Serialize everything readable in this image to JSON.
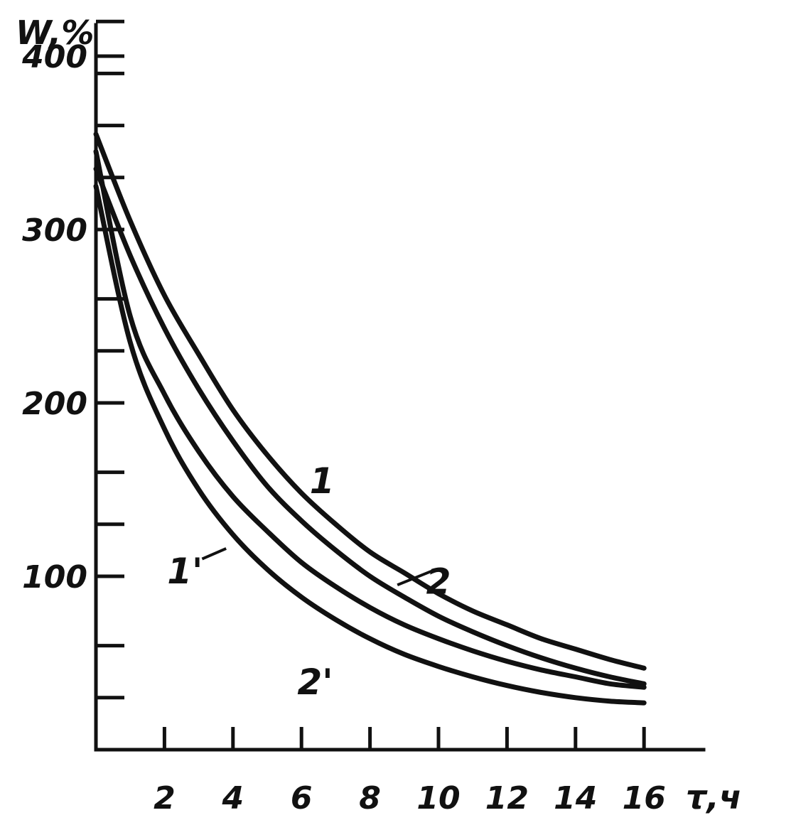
{
  "chart_data": {
    "type": "line",
    "ylabel": "W,%",
    "xlabel": "τ,ч",
    "xlim": [
      0,
      18
    ],
    "ylim": [
      0,
      430
    ],
    "x_ticks": [
      2,
      4,
      6,
      8,
      10,
      12,
      14,
      16
    ],
    "y_ticks": [
      100,
      200,
      300,
      400
    ],
    "y_minor_ticks": [
      30,
      60,
      130,
      160,
      230,
      260,
      330,
      360,
      390,
      420
    ],
    "grid": false,
    "series": [
      {
        "name": "1",
        "x": [
          0,
          1,
          2,
          3,
          4,
          5,
          6,
          7,
          8,
          9,
          10,
          11,
          12,
          13,
          14,
          15,
          16
        ],
        "y": [
          355,
          305,
          262,
          228,
          196,
          170,
          148,
          130,
          114,
          102,
          90,
          80,
          72,
          64,
          58,
          52,
          47
        ]
      },
      {
        "name": "2",
        "x": [
          0,
          1,
          2,
          3,
          4,
          5,
          6,
          7,
          8,
          9,
          10,
          11,
          12,
          13,
          14,
          15,
          16
        ],
        "y": [
          335,
          285,
          243,
          208,
          178,
          152,
          132,
          115,
          100,
          88,
          77,
          68,
          60,
          53,
          47,
          42,
          38
        ]
      },
      {
        "name": "1'",
        "x": [
          0,
          1,
          2,
          3,
          4,
          5,
          6,
          7,
          8,
          9,
          10,
          11,
          12,
          13,
          14,
          15,
          16
        ],
        "y": [
          345,
          250,
          205,
          172,
          146,
          126,
          108,
          94,
          82,
          72,
          64,
          57,
          51,
          46,
          42,
          38,
          36
        ]
      },
      {
        "name": "2'",
        "x": [
          0,
          1,
          2,
          3,
          4,
          5,
          6,
          7,
          8,
          9,
          10,
          11,
          12,
          13,
          14,
          15,
          16
        ],
        "y": [
          325,
          235,
          185,
          150,
          124,
          104,
          88,
          75,
          64,
          55,
          48,
          42,
          37,
          33,
          30,
          28,
          27
        ]
      }
    ],
    "series_labels": [
      "1",
      "2",
      "1'",
      "2'"
    ]
  }
}
